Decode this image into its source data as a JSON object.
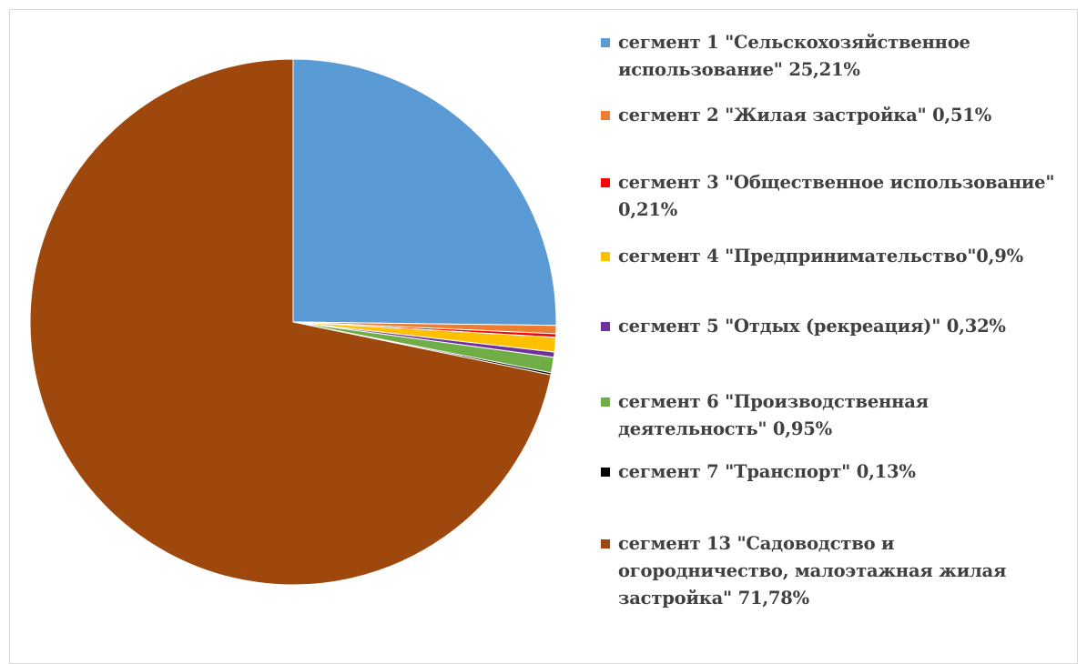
{
  "chart_data": {
    "type": "pie",
    "title": "",
    "legend_position": "right",
    "slices": [
      {
        "label": "сегмент 1 \"Сельскохозяйственное\nиспользование\" 25,21%",
        "value": 25.21,
        "color": "#5b9bd5"
      },
      {
        "label": "сегмент 2 \"Жилая застройка\" 0,51%",
        "value": 0.51,
        "color": "#ed7d31"
      },
      {
        "label": "сегмент 3 \"Общественное использование\"\n0,21%",
        "value": 0.21,
        "color": "#ff0000"
      },
      {
        "label": "сегмент 4 \"Предпринимательство\"0,9%",
        "value": 0.9,
        "color": "#ffc000"
      },
      {
        "label": "сегмент 5 \"Отдых (рекреация)\" 0,32%",
        "value": 0.32,
        "color": "#7030a0"
      },
      {
        "label": "сегмент 6 \"Производственная\nдеятельность\" 0,95%",
        "value": 0.95,
        "color": "#70ad47"
      },
      {
        "label": "сегмент 7 \"Транспорт\" 0,13%",
        "value": 0.13,
        "color": "#000000"
      },
      {
        "label": "сегмент 13 \"Садоводство и\nогородничество, малоэтажная жилая\nзастройка\" 71,78%",
        "value": 71.78,
        "color": "#9e480e"
      }
    ]
  }
}
